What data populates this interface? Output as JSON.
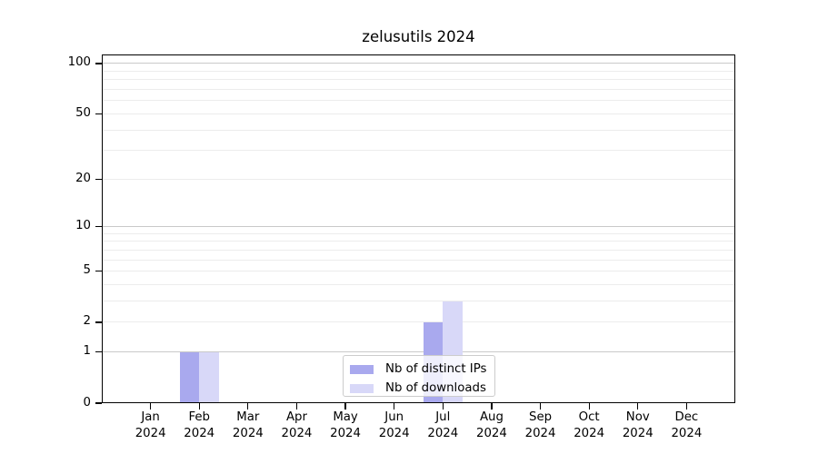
{
  "chart_data": {
    "type": "bar",
    "title": "zelusutils 2024",
    "categories": [
      "Jan",
      "Feb",
      "Mar",
      "Apr",
      "May",
      "Jun",
      "Jul",
      "Aug",
      "Sep",
      "Oct",
      "Nov",
      "Dec"
    ],
    "category_year": "2024",
    "series": [
      {
        "name": "Nb of distinct IPs",
        "color": "#a9a9ee",
        "values": [
          0,
          1,
          0,
          0,
          0,
          0,
          2,
          0,
          0,
          0,
          0,
          0
        ]
      },
      {
        "name": "Nb of downloads",
        "color": "#d8d8f8",
        "values": [
          0,
          1,
          0,
          0,
          0,
          0,
          3,
          0,
          0,
          0,
          0,
          0
        ]
      }
    ],
    "y_axis": {
      "scale": "log1p",
      "ticks": [
        0,
        1,
        2,
        5,
        10,
        20,
        50,
        100
      ],
      "major_gridlines": [
        1,
        10,
        100
      ],
      "minor_gridlines": [
        2,
        3,
        4,
        5,
        6,
        7,
        8,
        9,
        20,
        30,
        40,
        50,
        60,
        70,
        80,
        90
      ],
      "range": [
        0,
        113
      ]
    },
    "legend": {
      "position": "lower center"
    },
    "grid": true
  },
  "colors": {
    "background": "#ffffff",
    "spine": "#000000",
    "grid_major": "#c9c9c9",
    "grid_minor": "#ececec",
    "legend_border": "#cccccc"
  }
}
